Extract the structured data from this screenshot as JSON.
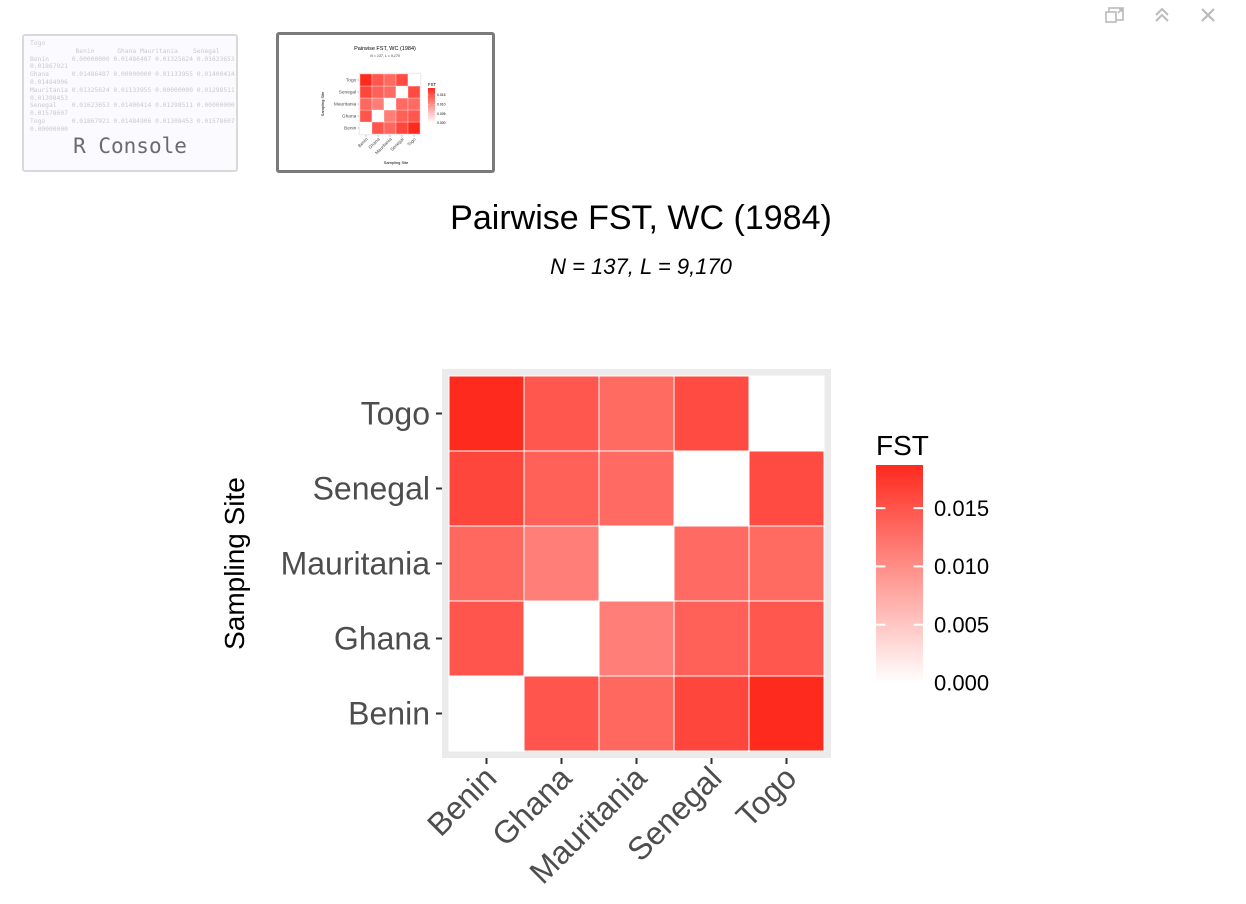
{
  "window_controls": {
    "pin": "pin-icon",
    "expand": "expand-icon",
    "close": "close-icon"
  },
  "thumbnails": {
    "console": {
      "lines": [
        "Togo",
        "            Benin      Ghana Mauritania    Senegal",
        "Benin      0.00000000 0.01486487 0.01325624 0.01623653",
        "0.01867921",
        "Ghana      0.01486487 0.00000000 0.01133955 0.01400414",
        "0.01484906",
        "Mauritania 0.01325624 0.01133955 0.00000000 0.01298511",
        "0.01308453",
        "Senegal    0.01623653 0.01400414 0.01298511 0.00000000",
        "0.01578607",
        "Togo       0.01867921 0.01484906 0.01308453 0.01578607",
        "0.00000000"
      ],
      "label": "R Console"
    }
  },
  "plot": {
    "title": "Pairwise FST, WC (1984)",
    "subtitle": "N = 137, L = 9,170"
  },
  "chart_data": {
    "type": "heatmap",
    "title": "Pairwise FST, WC (1984)",
    "subtitle": "N = 137, L = 9,170",
    "xlabel": "",
    "ylabel": "Sampling Site",
    "x_categories": [
      "Benin",
      "Ghana",
      "Mauritania",
      "Senegal",
      "Togo"
    ],
    "y_categories": [
      "Benin",
      "Ghana",
      "Mauritania",
      "Senegal",
      "Togo"
    ],
    "values": [
      [
        0.0,
        0.0149,
        0.0133,
        0.0162,
        0.0187
      ],
      [
        0.0149,
        0.0,
        0.0113,
        0.014,
        0.0148
      ],
      [
        0.0133,
        0.0113,
        0.0,
        0.013,
        0.0131
      ],
      [
        0.0162,
        0.014,
        0.013,
        0.0,
        0.0158
      ],
      [
        0.0187,
        0.0148,
        0.0131,
        0.0158,
        0.0
      ]
    ],
    "legend": {
      "title": "FST",
      "ticks": [
        "0.000",
        "0.005",
        "0.010",
        "0.015"
      ],
      "tick_values": [
        0.0,
        0.005,
        0.01,
        0.015
      ],
      "limits": [
        0.0,
        0.0187
      ],
      "low_color": "#ffffff",
      "high_color": "#ff2a1e",
      "placement": "right"
    },
    "grid": true,
    "panel_background": "#ebebeb"
  }
}
